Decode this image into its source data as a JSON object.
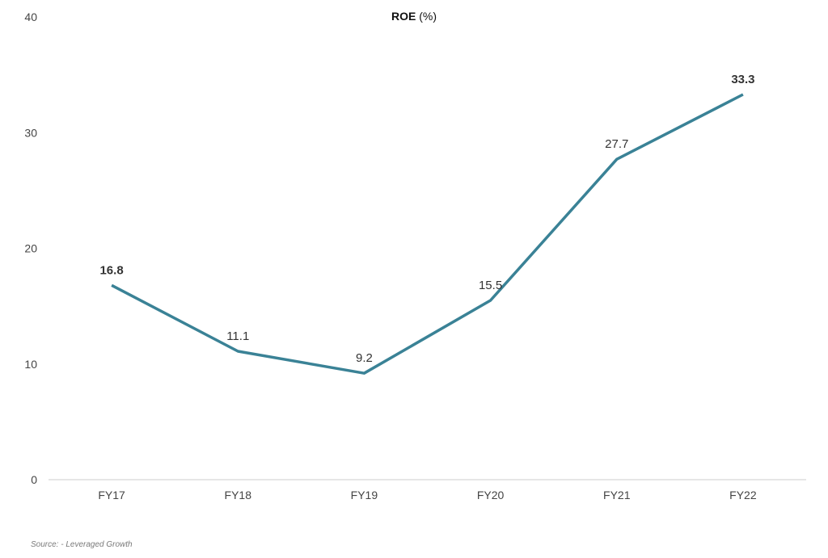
{
  "chart_data": {
    "type": "line",
    "title_bold": "ROE",
    "title_rest": " (%)",
    "categories": [
      "FY17",
      "FY18",
      "FY19",
      "FY20",
      "FY21",
      "FY22"
    ],
    "series": [
      {
        "values": [
          16.8,
          11.1,
          9.2,
          15.5,
          27.7,
          33.3
        ],
        "color": "#3a8296",
        "labels": [
          "16.8",
          "11.1",
          "9.2",
          "15.5",
          "27.7",
          "33.3"
        ],
        "bold_labels": [
          true,
          false,
          false,
          false,
          false,
          true
        ]
      }
    ],
    "yticks": [
      "0",
      "10",
      "20",
      "30",
      "40"
    ],
    "ylim": [
      0,
      40
    ],
    "grid": false,
    "legend": "none"
  },
  "source": "Source: - Leveraged Growth"
}
